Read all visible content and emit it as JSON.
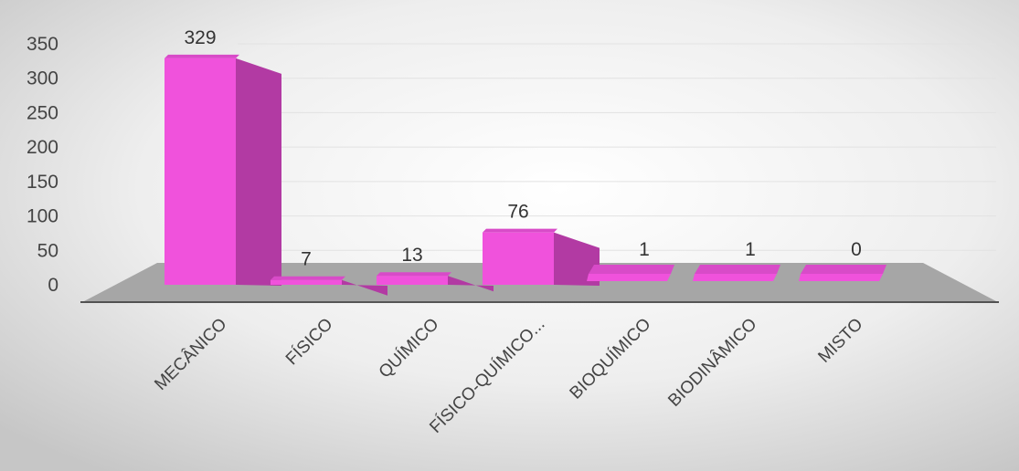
{
  "chart_data": {
    "type": "bar",
    "title": "",
    "xlabel": "",
    "ylabel": "",
    "categories": [
      "MECÂNICO",
      "FÍSICO",
      "QUÍMICO",
      "FÍSICO-QUÍMICO...",
      "BIOQUÍMICO",
      "BIODINÂMICO",
      "MISTO"
    ],
    "values": [
      329,
      7,
      13,
      76,
      1,
      1,
      0
    ],
    "data_labels": [
      "329",
      "7",
      "13",
      "76",
      "1",
      "1",
      "0"
    ],
    "y_ticks": [
      "0",
      "50",
      "100",
      "150",
      "200",
      "250",
      "300",
      "350"
    ],
    "ylim": [
      0,
      350
    ],
    "grid": true,
    "legend": "none",
    "style_3d": true,
    "colors": {
      "bar_front": "#f052dc",
      "bar_side": "#b23aa3",
      "bar_top": "#d84bc8",
      "floor": "#a6a6a6",
      "background_center": "#f7f7f7",
      "background_edge": "#c9c9c9"
    }
  }
}
